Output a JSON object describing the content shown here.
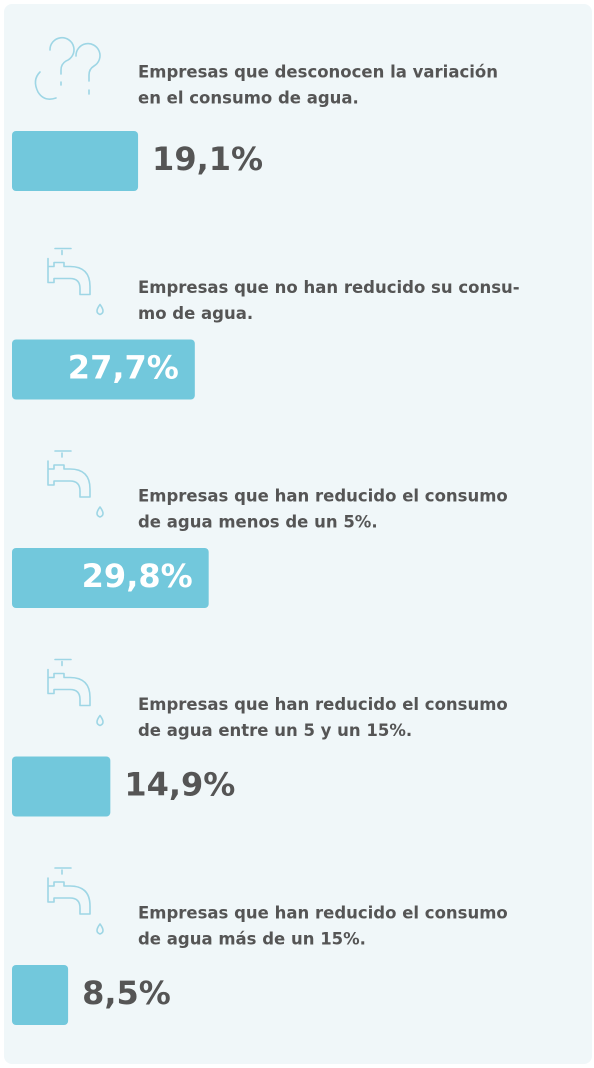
{
  "chart_data": {
    "type": "bar",
    "categories": [
      [
        "Empresas que desconocen la variación",
        "en el consumo de agua."
      ],
      [
        "Empresas que no han reducido su consu-",
        "mo de agua."
      ],
      [
        "Empresas que han reducido el consumo",
        "de agua menos de un 5%."
      ],
      [
        "Empresas que han reducido el consumo",
        "de agua entre un 5 y un 15%."
      ],
      [
        "Empresas que han reducido el consumo",
        "de agua más de un 15%."
      ]
    ],
    "values": [
      19.1,
      27.7,
      29.8,
      14.9,
      8.5
    ],
    "value_labels": [
      "19,1%",
      "27,7%",
      "29,8%",
      "14,9%",
      "8,5%"
    ],
    "color": "#72c8dc"
  }
}
